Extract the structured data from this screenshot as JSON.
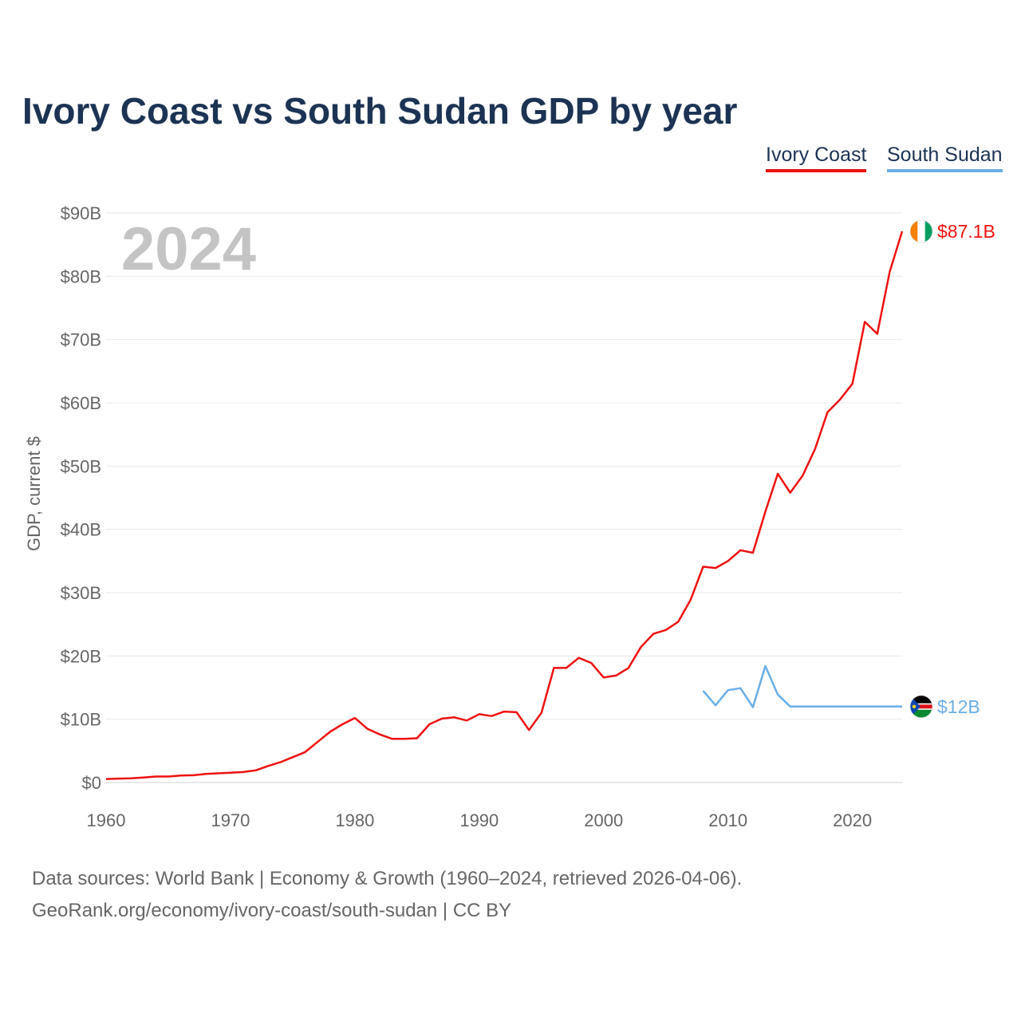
{
  "chart_data": {
    "type": "line",
    "title": "Ivory Coast vs South Sudan GDP by year",
    "ylabel": "GDP, current $",
    "xlabel": "",
    "current_year": "2024",
    "xlim": [
      1960,
      2024
    ],
    "ylim": [
      0,
      90
    ],
    "y_unit": "billions USD",
    "x_ticks": [
      1960,
      1970,
      1980,
      1990,
      2000,
      2010,
      2020
    ],
    "y_ticks": [
      {
        "value": 0,
        "label": "$0"
      },
      {
        "value": 10,
        "label": "$10B"
      },
      {
        "value": 20,
        "label": "$20B"
      },
      {
        "value": 30,
        "label": "$30B"
      },
      {
        "value": 40,
        "label": "$40B"
      },
      {
        "value": 50,
        "label": "$50B"
      },
      {
        "value": 60,
        "label": "$60B"
      },
      {
        "value": 70,
        "label": "$70B"
      },
      {
        "value": 80,
        "label": "$80B"
      },
      {
        "value": 90,
        "label": "$90B"
      }
    ],
    "grid": true,
    "legend_position": "top-right",
    "series": [
      {
        "name": "Ivory Coast",
        "color": "#ee1111",
        "end_label": "$87.1B",
        "flag_colors": [
          "#f77f00",
          "#ffffff",
          "#009e60"
        ],
        "x": [
          1960,
          1961,
          1962,
          1963,
          1964,
          1965,
          1966,
          1967,
          1968,
          1969,
          1970,
          1971,
          1972,
          1973,
          1974,
          1975,
          1976,
          1977,
          1978,
          1979,
          1980,
          1981,
          1982,
          1983,
          1984,
          1985,
          1986,
          1987,
          1988,
          1989,
          1990,
          1991,
          1992,
          1993,
          1994,
          1995,
          1996,
          1997,
          1998,
          1999,
          2000,
          2001,
          2002,
          2003,
          2004,
          2005,
          2006,
          2007,
          2008,
          2009,
          2010,
          2011,
          2012,
          2013,
          2014,
          2015,
          2016,
          2017,
          2018,
          2019,
          2020,
          2021,
          2022,
          2023,
          2024
        ],
        "values": [
          0.55,
          0.62,
          0.65,
          0.8,
          0.95,
          0.95,
          1.1,
          1.15,
          1.35,
          1.45,
          1.55,
          1.65,
          1.9,
          2.6,
          3.2,
          4.0,
          4.8,
          6.4,
          8.0,
          9.2,
          10.2,
          8.5,
          7.6,
          6.9,
          6.9,
          7.0,
          9.2,
          10.1,
          10.3,
          9.8,
          10.8,
          10.5,
          11.2,
          11.1,
          8.3,
          11.0,
          18.1,
          18.1,
          19.7,
          18.9,
          16.6,
          16.9,
          18.1,
          21.4,
          23.5,
          24.1,
          25.4,
          28.9,
          34.1,
          33.9,
          35.0,
          36.7,
          36.3,
          42.8,
          48.8,
          45.8,
          48.5,
          52.7,
          58.5,
          60.5,
          63.0,
          72.8,
          70.9,
          80.7,
          87.1
        ]
      },
      {
        "name": "South Sudan",
        "color": "#6aaee6",
        "end_label": "$12B",
        "flag_colors": [
          "#000000",
          "#ffffff",
          "#da121a",
          "#078930",
          "#0f47af",
          "#fcdd09"
        ],
        "x": [
          2008,
          2009,
          2010,
          2011,
          2012,
          2013,
          2014,
          2015,
          2016,
          2017,
          2018,
          2019,
          2020,
          2021,
          2022,
          2023,
          2024
        ],
        "values": [
          14.5,
          12.2,
          14.6,
          14.9,
          11.9,
          18.4,
          13.9,
          12.0,
          12.0,
          12.0,
          12.0,
          12.0,
          12.0,
          12.0,
          12.0,
          12.0,
          12.0
        ]
      }
    ]
  },
  "footer": {
    "line1": "Data sources: World Bank | Economy & Growth (1960–2024, retrieved 2026-04-06).",
    "line2": "GeoRank.org/economy/ivory-coast/south-sudan | CC BY"
  }
}
